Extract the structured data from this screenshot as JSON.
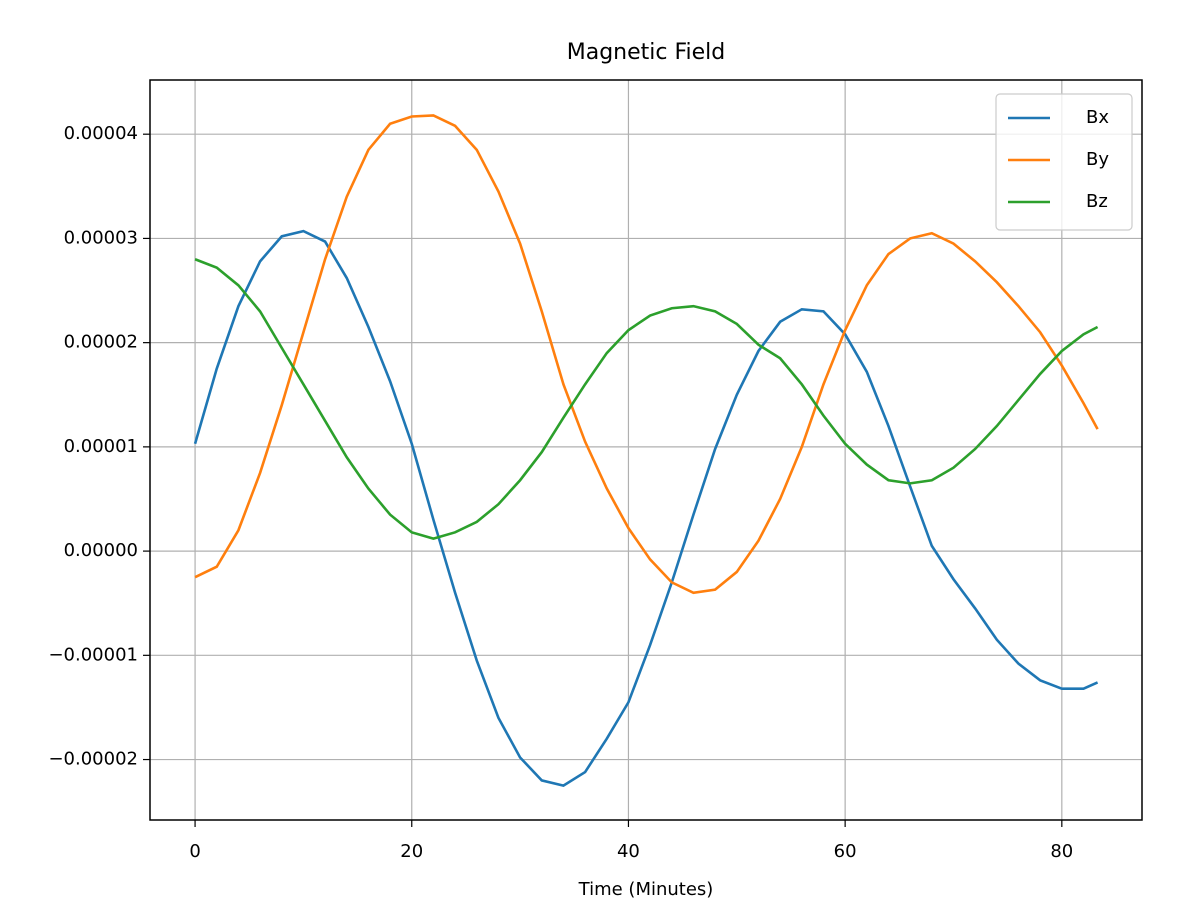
{
  "chart_data": {
    "type": "line",
    "title": "Magnetic Field",
    "xlabel": "Time (Minutes)",
    "x": [
      0,
      2,
      4,
      6,
      8,
      10,
      12,
      14,
      16,
      18,
      20,
      22,
      24,
      26,
      28,
      30,
      32,
      34,
      36,
      38,
      40,
      42,
      44,
      46,
      48,
      50,
      52,
      54,
      56,
      58,
      60,
      62,
      64,
      66,
      68,
      70,
      72,
      74,
      76,
      78,
      80,
      82,
      83.3
    ],
    "series": [
      {
        "name": "Bx",
        "color": "#1f77b4",
        "values": [
          1.03e-05,
          1.75e-05,
          2.35e-05,
          2.78e-05,
          3.02e-05,
          3.07e-05,
          2.97e-05,
          2.62e-05,
          2.15e-05,
          1.63e-05,
          1.03e-05,
          3e-06,
          -4e-06,
          -1.05e-05,
          -1.6e-05,
          -1.98e-05,
          -2.2e-05,
          -2.25e-05,
          -2.12e-05,
          -1.8e-05,
          -1.45e-05,
          -9e-06,
          -3e-06,
          3.5e-06,
          9.8e-06,
          1.5e-05,
          1.92e-05,
          2.2e-05,
          2.32e-05,
          2.3e-05,
          2.08e-05,
          1.72e-05,
          1.2e-05,
          6.2e-06,
          5e-07,
          -2.7e-06,
          -5.5e-06,
          -8.5e-06,
          -1.08e-05,
          -1.24e-05,
          -1.32e-05,
          -1.32e-05,
          -1.26e-05
        ]
      },
      {
        "name": "By",
        "color": "#ff7f0e",
        "values": [
          -2.5e-06,
          -1.5e-06,
          2e-06,
          7.5e-06,
          1.4e-05,
          2.1e-05,
          2.8e-05,
          3.4e-05,
          3.85e-05,
          4.1e-05,
          4.17e-05,
          4.18e-05,
          4.08e-05,
          3.85e-05,
          3.45e-05,
          2.95e-05,
          2.3e-05,
          1.6e-05,
          1.05e-05,
          6e-06,
          2.2e-06,
          -8e-07,
          -3e-06,
          -4e-06,
          -3.7e-06,
          -2e-06,
          1e-06,
          5e-06,
          1e-05,
          1.6e-05,
          2.12e-05,
          2.55e-05,
          2.85e-05,
          3e-05,
          3.05e-05,
          2.95e-05,
          2.78e-05,
          2.58e-05,
          2.35e-05,
          2.1e-05,
          1.78e-05,
          1.42e-05,
          1.17e-05
        ]
      },
      {
        "name": "Bz",
        "color": "#2ca02c",
        "values": [
          2.8e-05,
          2.72e-05,
          2.55e-05,
          2.3e-05,
          1.95e-05,
          1.6e-05,
          1.25e-05,
          9e-06,
          6e-06,
          3.5e-06,
          1.8e-06,
          1.2e-06,
          1.8e-06,
          2.8e-06,
          4.5e-06,
          6.8e-06,
          9.5e-06,
          1.28e-05,
          1.6e-05,
          1.9e-05,
          2.12e-05,
          2.26e-05,
          2.33e-05,
          2.35e-05,
          2.3e-05,
          2.18e-05,
          1.98e-05,
          1.85e-05,
          1.6e-05,
          1.3e-05,
          1.03e-05,
          8.3e-06,
          6.8e-06,
          6.5e-06,
          6.8e-06,
          8e-06,
          9.8e-06,
          1.2e-05,
          1.45e-05,
          1.7e-05,
          1.92e-05,
          2.08e-05,
          2.15e-05
        ]
      }
    ],
    "xlim": [
      -4.16,
      87.4
    ],
    "xticks": [
      0,
      20,
      40,
      60,
      80
    ],
    "ylim": [
      -2.58e-05,
      4.52e-05
    ],
    "yticks": [
      {
        "value": -2e-05,
        "label": "−0.00002"
      },
      {
        "value": -1e-05,
        "label": "−0.00001"
      },
      {
        "value": 0,
        "label": "0.00000"
      },
      {
        "value": 1e-05,
        "label": "0.00001"
      },
      {
        "value": 2e-05,
        "label": "0.00002"
      },
      {
        "value": 3e-05,
        "label": "0.00003"
      },
      {
        "value": 4e-05,
        "label": "0.00004"
      }
    ],
    "grid": true,
    "legend": "upper right"
  }
}
